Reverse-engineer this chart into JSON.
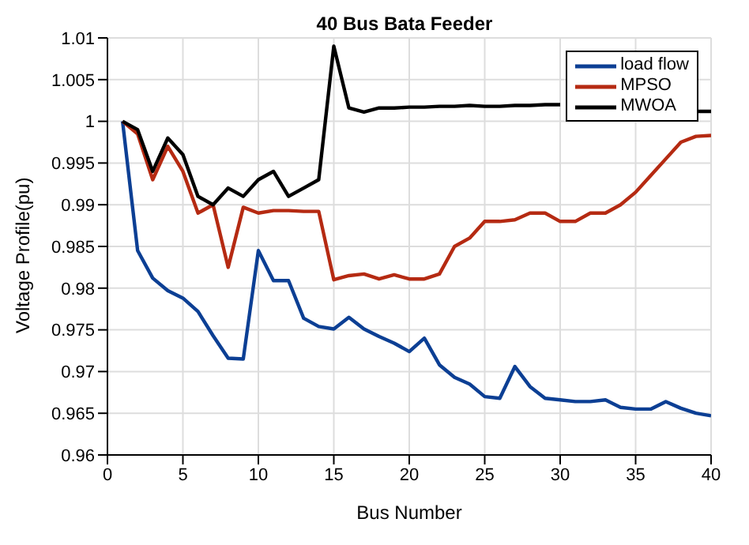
{
  "chart_data": {
    "type": "line",
    "title": "40 Bus Bata Feeder",
    "xlabel": "Bus Number",
    "ylabel": "Voltage Profile(pu)",
    "x": [
      1,
      2,
      3,
      4,
      5,
      6,
      7,
      8,
      9,
      10,
      11,
      12,
      13,
      14,
      15,
      16,
      17,
      18,
      19,
      20,
      21,
      22,
      23,
      24,
      25,
      26,
      27,
      28,
      29,
      30,
      31,
      32,
      33,
      34,
      35,
      36,
      37,
      38,
      39,
      40
    ],
    "series": [
      {
        "name": "load flow",
        "color": "#0c3f94",
        "values": [
          1.0,
          0.9845,
          0.9812,
          0.9797,
          0.9788,
          0.9772,
          0.9743,
          0.9716,
          0.9715,
          0.9845,
          0.9809,
          0.9809,
          0.9764,
          0.9754,
          0.9751,
          0.9765,
          0.9751,
          0.9742,
          0.9734,
          0.9724,
          0.974,
          0.9708,
          0.9693,
          0.9685,
          0.967,
          0.9668,
          0.9706,
          0.9682,
          0.9668,
          0.9666,
          0.9664,
          0.9664,
          0.9666,
          0.9657,
          0.9655,
          0.9655,
          0.9664,
          0.9656,
          0.965,
          0.9647
        ]
      },
      {
        "name": "MPSO",
        "color": "#b52a12",
        "values": [
          1.0,
          0.9985,
          0.993,
          0.997,
          0.994,
          0.989,
          0.99,
          0.9825,
          0.9897,
          0.989,
          0.9893,
          0.9893,
          0.9892,
          0.9892,
          0.981,
          0.9815,
          0.9817,
          0.9811,
          0.9816,
          0.9811,
          0.9811,
          0.9817,
          0.985,
          0.986,
          0.988,
          0.988,
          0.9882,
          0.989,
          0.989,
          0.988,
          0.988,
          0.989,
          0.989,
          0.99,
          0.9915,
          0.9935,
          0.9955,
          0.9975,
          0.9982,
          0.9983
        ]
      },
      {
        "name": "MWOA",
        "color": "#000000",
        "values": [
          1.0,
          0.999,
          0.994,
          0.998,
          0.996,
          0.991,
          0.99,
          0.992,
          0.991,
          0.993,
          0.994,
          0.991,
          0.992,
          0.993,
          1.009,
          1.0016,
          1.0011,
          1.0016,
          1.0016,
          1.0017,
          1.0017,
          1.0018,
          1.0018,
          1.0019,
          1.0018,
          1.0018,
          1.0019,
          1.0019,
          1.002,
          1.002,
          null,
          null,
          null,
          null,
          null,
          null,
          null,
          null,
          1.0012,
          1.0012
        ]
      }
    ],
    "xlim": [
      0,
      40
    ],
    "xticks": [
      0,
      5,
      10,
      15,
      20,
      25,
      30,
      35,
      40
    ],
    "ylim": [
      0.96,
      1.01
    ],
    "yticks": [
      0.96,
      0.965,
      0.97,
      0.975,
      0.98,
      0.985,
      0.99,
      0.995,
      1,
      1.005,
      1.01
    ],
    "grid": true,
    "legend": "top right",
    "marker": "none",
    "line_style": "solid"
  }
}
